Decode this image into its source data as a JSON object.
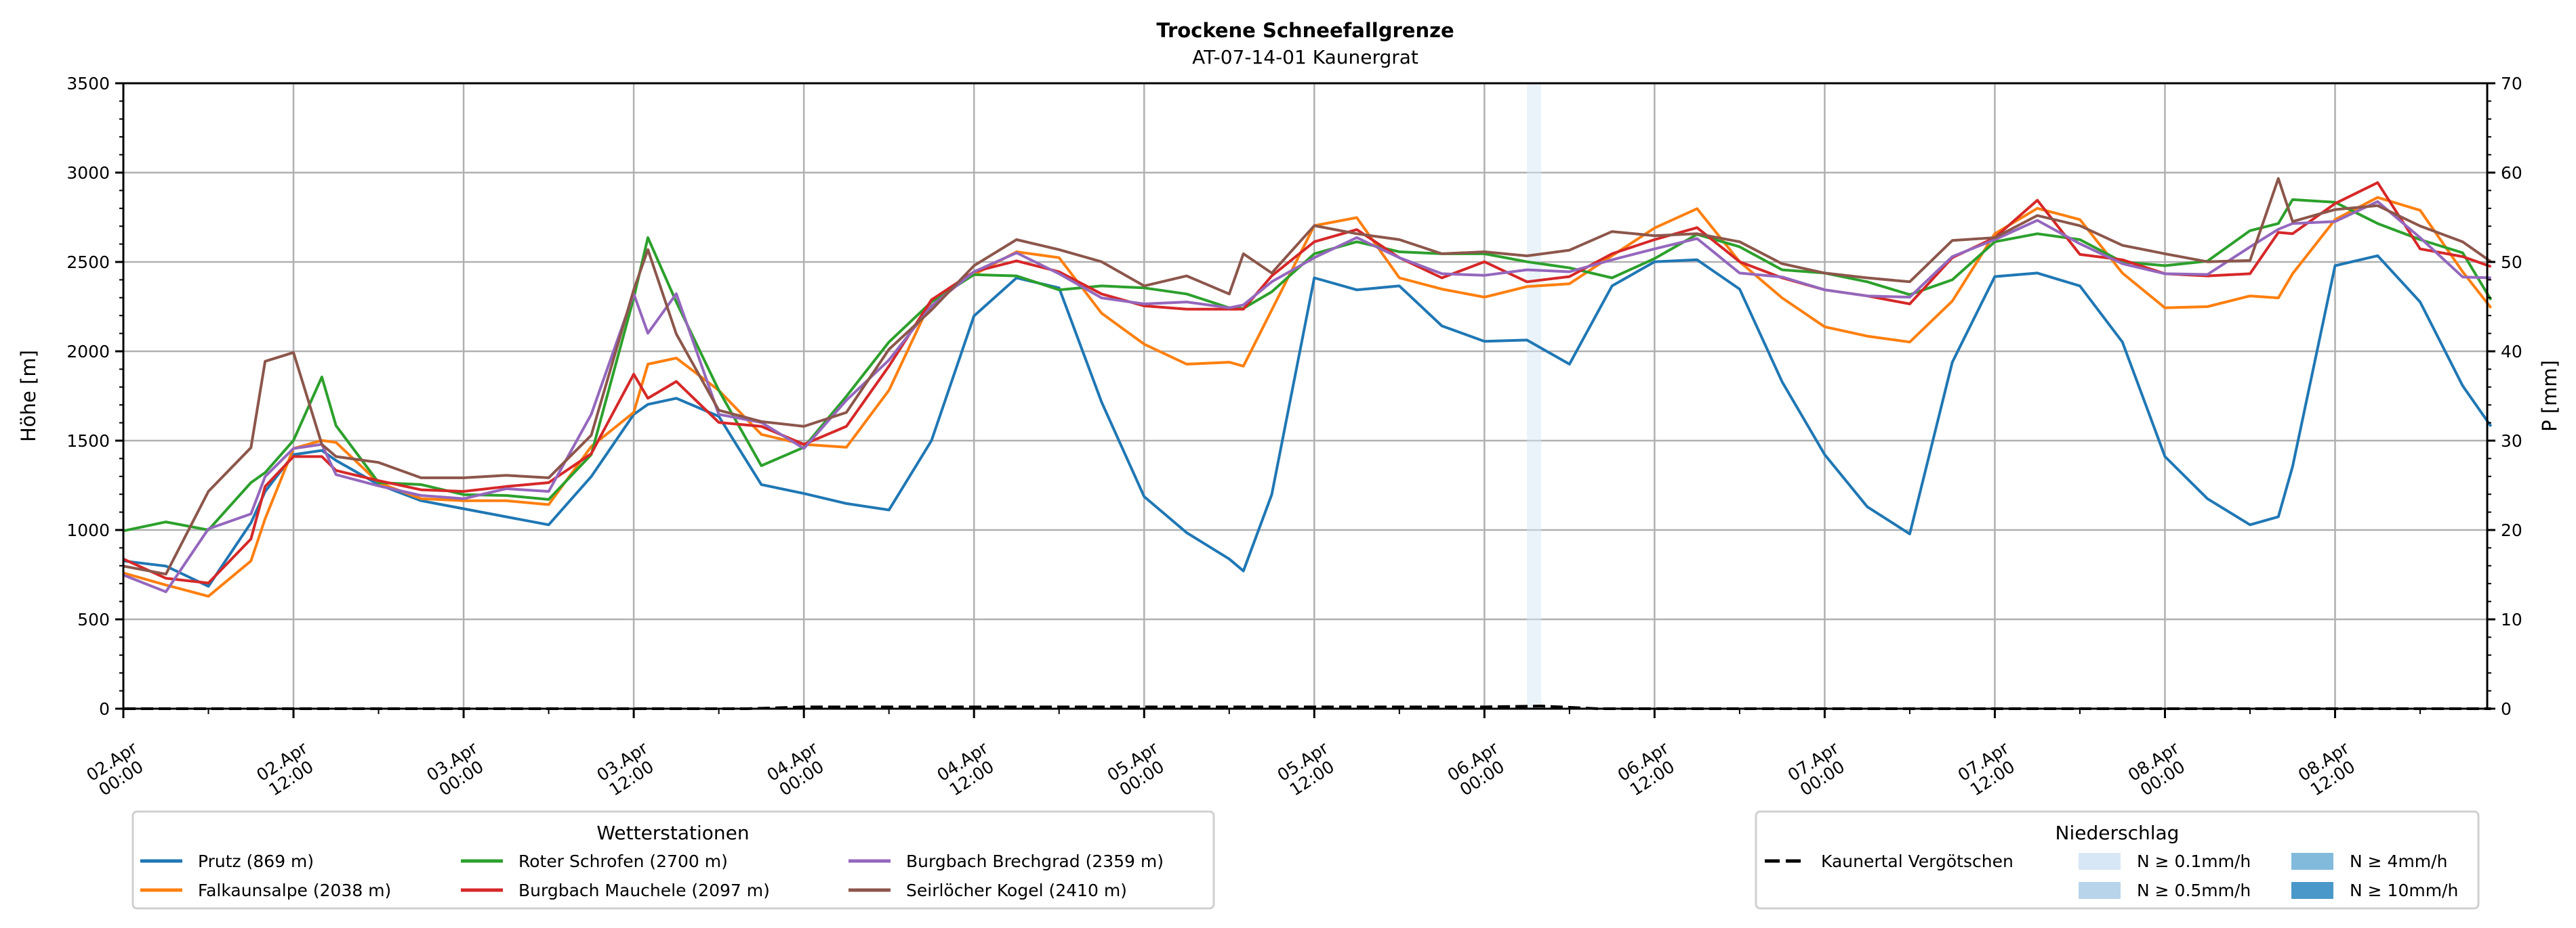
{
  "chart_data": {
    "type": "line",
    "title": "Trockene Schneefallgrenze",
    "subtitle": "AT-07-14-01 Kaunergrat",
    "ylabel": "Höhe [m]",
    "ylabel_right": "P [mm]",
    "ylim": [
      0,
      3500
    ],
    "ylim_right": [
      0,
      70
    ],
    "xlim_hours": [
      0,
      167
    ],
    "x_unit": "hours since 02.Apr 00:00",
    "grid": true,
    "y_ticks": [
      "0",
      "500",
      "1000",
      "1500",
      "2000",
      "2500",
      "3000",
      "3500"
    ],
    "y_ticks_right": [
      "0",
      "10",
      "20",
      "30",
      "40",
      "50",
      "60",
      "70"
    ],
    "x_ticks": [
      {
        "date": "02.Apr",
        "time": "00:00"
      },
      {
        "date": "02.Apr",
        "time": "12:00"
      },
      {
        "date": "03.Apr",
        "time": "00:00"
      },
      {
        "date": "03.Apr",
        "time": "12:00"
      },
      {
        "date": "04.Apr",
        "time": "00:00"
      },
      {
        "date": "04.Apr",
        "time": "12:00"
      },
      {
        "date": "05.Apr",
        "time": "00:00"
      },
      {
        "date": "05.Apr",
        "time": "12:00"
      },
      {
        "date": "06.Apr",
        "time": "00:00"
      },
      {
        "date": "06.Apr",
        "time": "12:00"
      },
      {
        "date": "07.Apr",
        "time": "00:00"
      },
      {
        "date": "07.Apr",
        "time": "12:00"
      },
      {
        "date": "08.Apr",
        "time": "00:00"
      },
      {
        "date": "08.Apr",
        "time": "12:00"
      }
    ],
    "x": [
      0,
      3,
      6,
      9,
      10,
      12,
      14,
      15,
      18,
      21,
      24,
      27,
      30,
      33,
      36,
      37,
      39,
      42,
      45,
      48,
      51,
      54,
      57,
      60,
      63,
      66,
      69,
      72,
      75,
      78,
      79,
      81,
      84,
      87,
      90,
      93,
      96,
      99,
      102,
      105,
      108,
      111,
      114,
      117,
      120,
      123,
      126,
      129,
      132,
      135,
      138,
      141,
      144,
      147,
      150,
      152,
      153,
      156,
      159,
      162,
      165,
      167
    ],
    "series": [
      {
        "name": "Prutz (869 m)",
        "color": "#1f77b4",
        "values": [
          827,
          798,
          685,
          1040,
          1215,
          1422,
          1445,
          1389,
          1254,
          1164,
          1119,
          1074,
          1029,
          1299,
          1647,
          1703,
          1737,
          1636,
          1254,
          1204,
          1148,
          1112,
          1500,
          2198,
          2411,
          2355,
          1715,
          1187,
          985,
          838,
          771,
          1198,
          2411,
          2344,
          2366,
          2142,
          2056,
          2063,
          1928,
          2366,
          2501,
          2512,
          2348,
          1829,
          1422,
          1130,
          978,
          1939,
          2418,
          2438,
          2366,
          2052,
          1411,
          1175,
          1029,
          1074,
          1355,
          2479,
          2535,
          2276,
          1807,
          1580
        ]
      },
      {
        "name": "Falkaunsalpe (2038 m)",
        "color": "#ff7f0e",
        "values": [
          760,
          692,
          629,
          827,
          1063,
          1456,
          1501,
          1490,
          1265,
          1175,
          1164,
          1164,
          1142,
          1467,
          1658,
          1928,
          1962,
          1782,
          1535,
          1479,
          1463,
          1782,
          2288,
          2429,
          2557,
          2524,
          2213,
          2040,
          1928,
          1939,
          1917,
          2231,
          2703,
          2748,
          2411,
          2348,
          2303,
          2362,
          2378,
          2535,
          2690,
          2798,
          2501,
          2299,
          2137,
          2085,
          2052,
          2281,
          2658,
          2800,
          2737,
          2438,
          2243,
          2250,
          2310,
          2299,
          2434,
          2737,
          2861,
          2789,
          2445,
          2243
        ]
      },
      {
        "name": "Roter Schrofen (2700 m)",
        "color": "#2ca02c",
        "values": [
          995,
          1045,
          1000,
          1265,
          1321,
          1501,
          1856,
          1584,
          1265,
          1254,
          1198,
          1193,
          1171,
          1422,
          2299,
          2636,
          2276,
          1782,
          1360,
          1463,
          1748,
          2052,
          2276,
          2429,
          2422,
          2344,
          2366,
          2355,
          2321,
          2243,
          2240,
          2333,
          2546,
          2613,
          2557,
          2546,
          2546,
          2501,
          2467,
          2411,
          2519,
          2654,
          2585,
          2456,
          2438,
          2389,
          2317,
          2400,
          2613,
          2658,
          2625,
          2500,
          2479,
          2505,
          2675,
          2715,
          2849,
          2834,
          2715,
          2625,
          2551,
          2288
        ]
      },
      {
        "name": "Burgbach Mauchele (2097 m)",
        "color": "#d62728",
        "values": [
          838,
          730,
          703,
          950,
          1243,
          1411,
          1411,
          1333,
          1276,
          1225,
          1216,
          1243,
          1265,
          1427,
          1872,
          1737,
          1831,
          1602,
          1580,
          1479,
          1580,
          1917,
          2288,
          2445,
          2506,
          2445,
          2321,
          2254,
          2236,
          2236,
          2236,
          2422,
          2613,
          2681,
          2524,
          2411,
          2501,
          2389,
          2418,
          2546,
          2625,
          2692,
          2501,
          2411,
          2344,
          2310,
          2265,
          2524,
          2636,
          2845,
          2542,
          2512,
          2434,
          2422,
          2434,
          2665,
          2658,
          2827,
          2944,
          2573,
          2530,
          2474
        ]
      },
      {
        "name": "Burgbach Brechgrad (2359 m)",
        "color": "#9467bd",
        "values": [
          748,
          654,
          1006,
          1090,
          1299,
          1456,
          1479,
          1310,
          1247,
          1193,
          1175,
          1231,
          1216,
          1647,
          2322,
          2101,
          2322,
          1647,
          1602,
          1456,
          1726,
          1951,
          2254,
          2445,
          2551,
          2434,
          2299,
          2265,
          2276,
          2243,
          2260,
          2389,
          2524,
          2636,
          2524,
          2434,
          2425,
          2456,
          2445,
          2512,
          2573,
          2631,
          2438,
          2416,
          2344,
          2310,
          2303,
          2530,
          2625,
          2733,
          2602,
          2490,
          2434,
          2430,
          2584,
          2683,
          2715,
          2726,
          2838,
          2636,
          2416,
          2411
        ]
      },
      {
        "name": "Seirlöcher Kogel (2410 m)",
        "color": "#8c564b",
        "values": [
          798,
          753,
          1216,
          1461,
          1944,
          1993,
          1479,
          1411,
          1378,
          1292,
          1292,
          1306,
          1292,
          1530,
          2344,
          2569,
          2097,
          1670,
          1607,
          1580,
          1658,
          2011,
          2231,
          2479,
          2625,
          2569,
          2501,
          2366,
          2422,
          2321,
          2546,
          2438,
          2703,
          2658,
          2625,
          2546,
          2557,
          2534,
          2566,
          2670,
          2647,
          2658,
          2613,
          2490,
          2438,
          2411,
          2389,
          2620,
          2636,
          2760,
          2703,
          2593,
          2546,
          2501,
          2508,
          2967,
          2726,
          2793,
          2815,
          2701,
          2613,
          2501
        ]
      }
    ],
    "precipitation": {
      "name": "Kaunertal Vergötschen",
      "x": [
        0,
        44,
        48,
        60,
        80,
        96,
        100,
        104,
        167
      ],
      "values": [
        0,
        0,
        0.2,
        0.2,
        0.2,
        0.2,
        0.3,
        0,
        0
      ]
    },
    "precip_shading": [
      {
        "start_hour": 99,
        "end_hour": 100,
        "class": "N ≥ 0.1mm/h"
      }
    ],
    "legend_stations": {
      "title": "Wetterstationen",
      "placement": "bottom-left"
    },
    "legend_precip": {
      "title": "Niederschlag",
      "placement": "bottom-right",
      "classes": [
        {
          "label": "N ≥ 0.1mm/h",
          "color": "#d8e7f5"
        },
        {
          "label": "N ≥ 0.5mm/h",
          "color": "#b8d4ea"
        },
        {
          "label": "N ≥ 4mm/h",
          "color": "#82badb"
        },
        {
          "label": "N ≥ 10mm/h",
          "color": "#4a98c9"
        }
      ]
    }
  }
}
